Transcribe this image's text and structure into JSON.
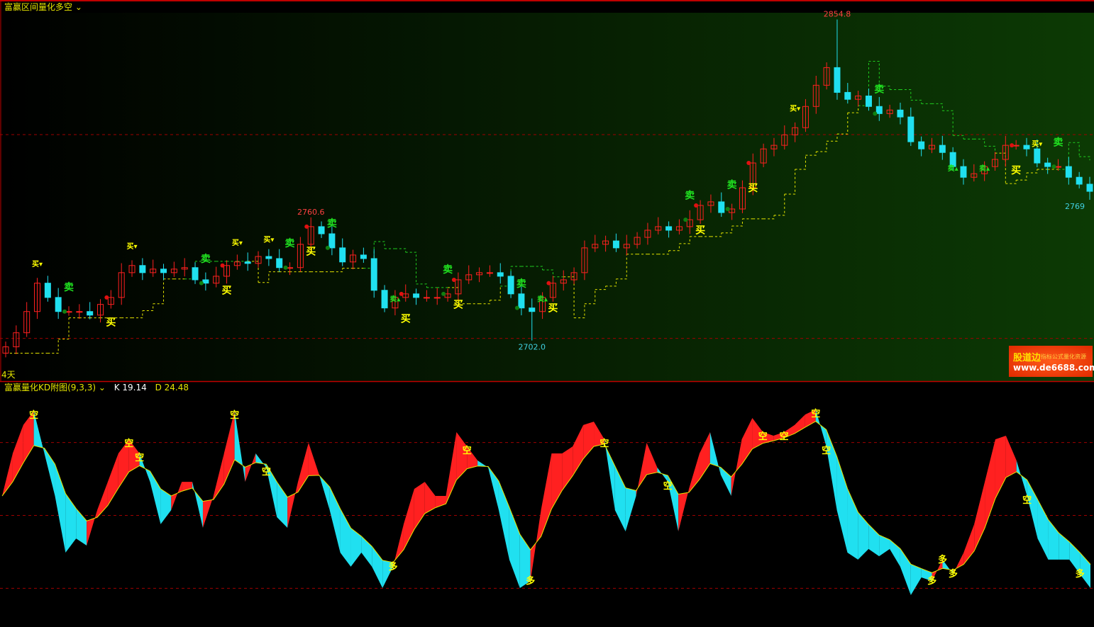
{
  "main_panel": {
    "title": "富赢区间量化多空",
    "dropdown_icon": "chevron-down-icon",
    "corner_label": "4天"
  },
  "kd_panel": {
    "title": "富赢量化KD附图(9,3,3)",
    "dropdown_icon": "chevron-down-icon",
    "k_label": "K 19.14",
    "d_label": "D 24.48"
  },
  "watermark": {
    "brand": "股道边",
    "tagline": "指标公式量化资源",
    "url": "www.de6688.com"
  },
  "colors": {
    "up": "#ff2020",
    "down": "#20e0f0",
    "buy": "#ffff00",
    "sell": "#20e020",
    "grid": "#a00000"
  },
  "chart_data": [
    {
      "type": "candlestick",
      "title": "富赢区间量化多空",
      "ylim": [
        2683,
        2858
      ],
      "grid_lines": [
        2800,
        2703
      ],
      "closes": [
        2699.0,
        2705.7,
        2715.8,
        2729.3,
        2722.5,
        2715.8,
        2715.8,
        2715.8,
        2714.1,
        2719.2,
        2722.5,
        2734.3,
        2737.7,
        2734.3,
        2736.0,
        2734.3,
        2736.0,
        2736.7,
        2730.9,
        2729.3,
        2732.6,
        2737.7,
        2739.4,
        2738.7,
        2742.0,
        2741.0,
        2736.7,
        2736.7,
        2747.8,
        2756.2,
        2752.8,
        2746.1,
        2739.4,
        2742.7,
        2741.0,
        2725.9,
        2717.5,
        2722.5,
        2724.2,
        2722.5,
        2722.5,
        2722.5,
        2724.2,
        2730.9,
        2733.3,
        2734.3,
        2734.3,
        2732.6,
        2724.2,
        2717.5,
        2715.8,
        2722.5,
        2729.3,
        2730.9,
        2734.3,
        2746.1,
        2747.8,
        2749.4,
        2746.1,
        2747.8,
        2751.1,
        2754.5,
        2756.2,
        2754.5,
        2756.2,
        2759.5,
        2766.3,
        2768.0,
        2762.9,
        2764.6,
        2774.7,
        2786.5,
        2793.2,
        2794.9,
        2799.9,
        2803.3,
        2813.4,
        2823.5,
        2831.9,
        2820.1,
        2816.8,
        2818.4,
        2813.4,
        2810.0,
        2811.7,
        2808.4,
        2796.6,
        2793.2,
        2794.9,
        2791.5,
        2784.8,
        2779.7,
        2781.4,
        2784.8,
        2788.2,
        2794.9,
        2794.9,
        2793.2,
        2786.5,
        2784.8,
        2784.8,
        2779.7,
        2776.4,
        2773.0
      ],
      "annotations": [
        {
          "text": "2854.8",
          "price": 2854.8,
          "bar": 79,
          "kind": "high"
        },
        {
          "text": "2760.6",
          "price": 2760.6,
          "bar": 29,
          "kind": "high"
        },
        {
          "text": "2702.0",
          "price": 2702.0,
          "bar": 50,
          "kind": "low"
        },
        {
          "text": "2769",
          "price": 2769,
          "bar": 103,
          "kind": "low"
        }
      ],
      "signals": [
        {
          "bar": 6,
          "text": "卖",
          "type": "sell"
        },
        {
          "bar": 19,
          "text": "卖",
          "type": "sell"
        },
        {
          "bar": 27,
          "text": "卖",
          "type": "sell"
        },
        {
          "bar": 31,
          "text": "卖",
          "type": "sell"
        },
        {
          "bar": 42,
          "text": "卖",
          "type": "sell"
        },
        {
          "bar": 49,
          "text": "卖",
          "type": "sell"
        },
        {
          "bar": 65,
          "text": "卖",
          "type": "sell"
        },
        {
          "bar": 69,
          "text": "卖",
          "type": "sell"
        },
        {
          "bar": 83,
          "text": "卖",
          "type": "sell"
        },
        {
          "bar": 100,
          "text": "卖",
          "type": "sell"
        },
        {
          "bar": 10,
          "text": "买",
          "type": "buy"
        },
        {
          "bar": 21,
          "text": "买",
          "type": "buy"
        },
        {
          "bar": 29,
          "text": "买",
          "type": "buy"
        },
        {
          "bar": 38,
          "text": "买",
          "type": "buy"
        },
        {
          "bar": 43,
          "text": "买",
          "type": "buy"
        },
        {
          "bar": 52,
          "text": "买",
          "type": "buy"
        },
        {
          "bar": 66,
          "text": "买",
          "type": "buy"
        },
        {
          "bar": 71,
          "text": "买",
          "type": "buy"
        },
        {
          "bar": 96,
          "text": "买",
          "type": "buy"
        },
        {
          "bar": 3,
          "text": "买▾",
          "type": "buy-small"
        },
        {
          "bar": 12,
          "text": "买▾",
          "type": "buy-small"
        },
        {
          "bar": 22,
          "text": "买▾",
          "type": "buy-small"
        },
        {
          "bar": 25,
          "text": "买▾",
          "type": "buy-small"
        },
        {
          "bar": 75,
          "text": "买▾",
          "type": "buy-small"
        },
        {
          "bar": 98,
          "text": "买▾",
          "type": "buy-small"
        },
        {
          "bar": 37,
          "text": "卖▴",
          "type": "sell-small"
        },
        {
          "bar": 51,
          "text": "卖▴",
          "type": "sell-small"
        },
        {
          "bar": 90,
          "text": "卖▴",
          "type": "sell-small"
        },
        {
          "bar": 93,
          "text": "卖▴",
          "type": "sell-small"
        }
      ]
    },
    {
      "type": "band",
      "title": "富赢量化KD附图(9,3,3)",
      "ylim": [
        0,
        100
      ],
      "grid_lines": [
        80,
        50,
        20
      ],
      "k": [
        58.0,
        75.5,
        87.2,
        93.0,
        75.5,
        58.0,
        34.7,
        40.5,
        37.6,
        52.2,
        63.8,
        75.5,
        81.3,
        75.5,
        63.8,
        46.4,
        52.2,
        63.8,
        63.8,
        44.9,
        58.0,
        75.5,
        93.0,
        63.8,
        75.5,
        69.7,
        49.3,
        44.9,
        63.8,
        79.9,
        66.8,
        52.2,
        34.7,
        28.9,
        34.7,
        28.9,
        20.1,
        28.9,
        46.4,
        60.9,
        63.8,
        58.0,
        58.0,
        84.3,
        78.4,
        72.6,
        69.7,
        52.2,
        31.8,
        20.1,
        23.0,
        52.2,
        75.5,
        75.5,
        78.4,
        87.2,
        88.6,
        81.3,
        52.2,
        43.4,
        58.0,
        79.9,
        69.7,
        63.8,
        43.4,
        60.9,
        75.5,
        84.3,
        66.8,
        58.0,
        81.3,
        90.1,
        84.3,
        82.8,
        84.3,
        87.2,
        91.5,
        93.6,
        78.4,
        52.2,
        34.7,
        31.8,
        36.2,
        33.2,
        36.2,
        28.9,
        17.2,
        24.5,
        23.0,
        31.8,
        25.9,
        34.7,
        46.4,
        63.8,
        81.3,
        82.8,
        72.6,
        58.0,
        40.5,
        31.8,
        31.8,
        31.8,
        25.9,
        20.1
      ],
      "signals": [
        {
          "bar": 3,
          "text": "空"
        },
        {
          "bar": 12,
          "text": "空"
        },
        {
          "bar": 13,
          "text": "空"
        },
        {
          "bar": 22,
          "text": "空"
        },
        {
          "bar": 25,
          "text": "空"
        },
        {
          "bar": 44,
          "text": "空"
        },
        {
          "bar": 57,
          "text": "空"
        },
        {
          "bar": 63,
          "text": "空"
        },
        {
          "bar": 72,
          "text": "空"
        },
        {
          "bar": 74,
          "text": "空"
        },
        {
          "bar": 77,
          "text": "空"
        },
        {
          "bar": 78,
          "text": "空"
        },
        {
          "bar": 97,
          "text": "空"
        },
        {
          "bar": 37,
          "text": "多"
        },
        {
          "bar": 50,
          "text": "多"
        },
        {
          "bar": 88,
          "text": "多"
        },
        {
          "bar": 89,
          "text": "多"
        },
        {
          "bar": 90,
          "text": "多"
        },
        {
          "bar": 102,
          "text": "多"
        }
      ]
    }
  ]
}
